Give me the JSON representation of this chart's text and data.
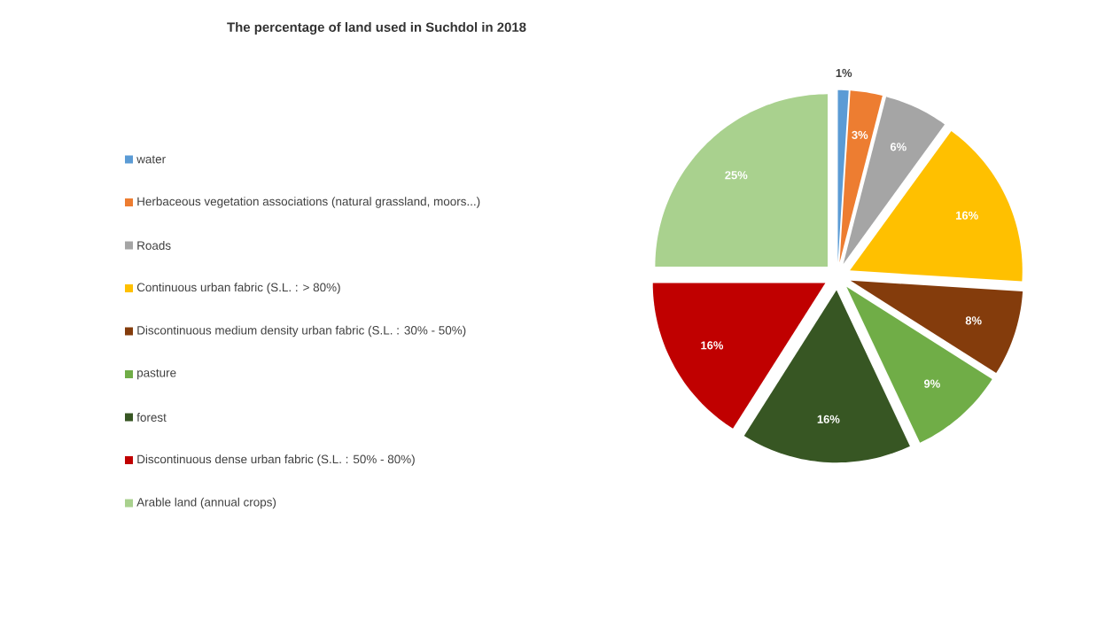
{
  "chart_data": {
    "type": "pie",
    "title": "The percentage of land used in Suchdol in 2018",
    "categories": [
      "water",
      "Herbaceous vegetation associations (natural grassland, moors...)",
      "Roads",
      "Continuous urban fabric (S.L. : > 80%)",
      "Discontinuous medium density urban fabric (S.L. : 30% - 50%)",
      "pasture",
      "forest",
      "Discontinuous dense urban fabric (S.L. : 50% -  80%)",
      "Arable land (annual crops)"
    ],
    "values": [
      1,
      3,
      6,
      16,
      8,
      9,
      16,
      16,
      25
    ],
    "value_labels": [
      "1%",
      "3%",
      "6%",
      "16%",
      "8%",
      "9%",
      "16%",
      "16%",
      "25%"
    ],
    "colors": [
      "#5b9bd5",
      "#ed7d31",
      "#a5a5a5",
      "#ffc000",
      "#843c0c",
      "#70ad47",
      "#375623",
      "#c00000",
      "#a9d18e"
    ],
    "legend": "left"
  }
}
